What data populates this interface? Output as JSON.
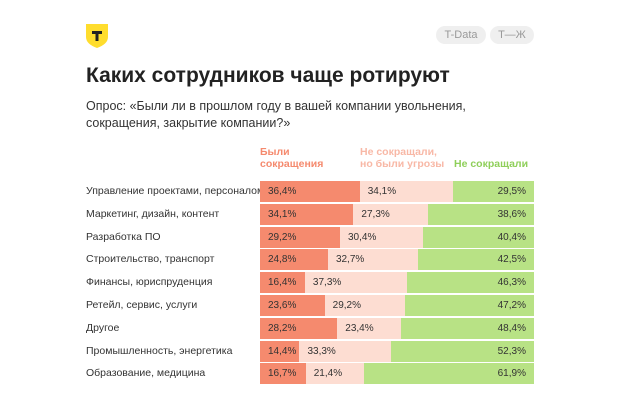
{
  "header": {
    "logo_letter": "Т",
    "pills": [
      "T-Data",
      "Т—Ж"
    ]
  },
  "title": "Каких сотрудников чаще ротируют",
  "subtitle": "Опрос: «Были ли в прошлом году в вашей компании увольнения, сокращения, закрытие компании?»",
  "colors": {
    "cut": "#f58a6e",
    "threat": "#fdddd2",
    "none": "#b8e285",
    "logo": "#ffdd2d"
  },
  "chart_data": {
    "type": "bar",
    "stacked": true,
    "orientation": "horizontal",
    "unit": "%",
    "categories": [
      "Управление проектами, персоналом",
      "Маркетинг, дизайн, контент",
      "Разработка ПО",
      "Строительство, транспорт",
      "Финансы, юриспруденция",
      "Ретейл, сервис, услуги",
      "Другое",
      "Промышленность, энергетика",
      "Образование, медицина"
    ],
    "series": [
      {
        "name": "Были сокращения",
        "color": "#f58a6e",
        "labels_color": "#f58a6e",
        "values": [
          36.4,
          34.1,
          29.2,
          24.8,
          16.4,
          23.6,
          28.2,
          14.4,
          16.7
        ],
        "labels": [
          "36,4%",
          "34,1%",
          "29,2%",
          "24,8%",
          "16,4%",
          "23,6%",
          "28,2%",
          "14,4%",
          "16,7%"
        ]
      },
      {
        "name": "Не сокращали, но были угрозы",
        "color": "#fdddd2",
        "labels_color": "#f8b8a6",
        "values": [
          34.1,
          27.3,
          30.4,
          32.7,
          37.3,
          29.2,
          23.4,
          33.3,
          21.4
        ],
        "labels": [
          "34,1%",
          "27,3%",
          "30,4%",
          "32,7%",
          "37,3%",
          "29,2%",
          "23,4%",
          "33,3%",
          "21,4%"
        ]
      },
      {
        "name": "Не сокращали",
        "color": "#b8e285",
        "labels_color": "#8fcf5a",
        "values": [
          29.5,
          38.6,
          40.4,
          42.5,
          46.3,
          47.2,
          48.4,
          52.3,
          61.9
        ],
        "labels": [
          "29,5%",
          "38,6%",
          "40,4%",
          "42,5%",
          "46,3%",
          "47,2%",
          "48,4%",
          "52,3%",
          "61,9%"
        ]
      }
    ],
    "legend_placement": "top"
  }
}
